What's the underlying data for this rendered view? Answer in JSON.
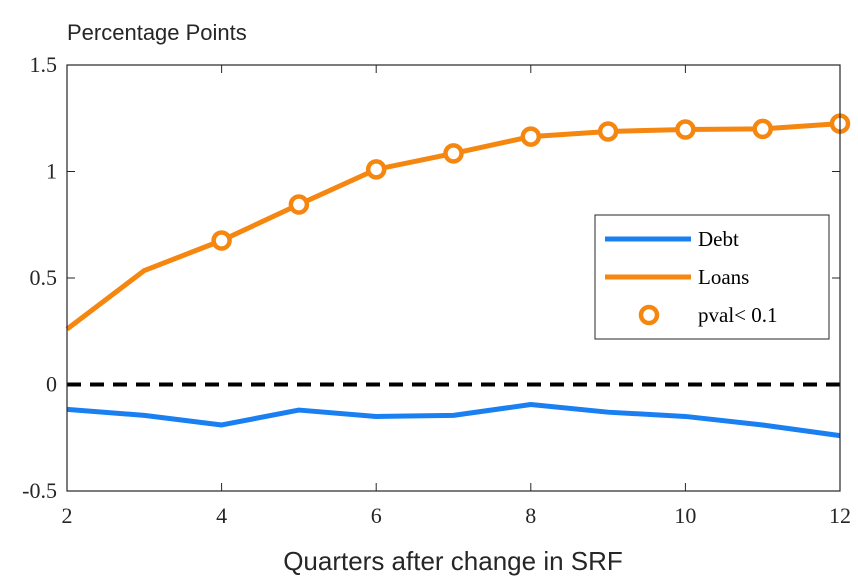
{
  "chart_data": {
    "type": "line",
    "title": "Percentage Points",
    "x_label": "Quarters after change in SRF",
    "x": [
      2,
      3,
      4,
      5,
      6,
      7,
      8,
      9,
      10,
      11,
      12
    ],
    "series": [
      {
        "name": "Debt",
        "color": "#1a80f2",
        "values": [
          -0.117,
          -0.145,
          -0.19,
          -0.12,
          -0.15,
          -0.145,
          -0.094,
          -0.13,
          -0.15,
          -0.19,
          -0.24
        ]
      },
      {
        "name": "Loans",
        "color": "#f5860f",
        "values": [
          0.26,
          0.535,
          0.676,
          0.845,
          1.01,
          1.085,
          1.164,
          1.188,
          1.197,
          1.2,
          1.225
        ]
      },
      {
        "name": "pval< 0.1",
        "type": "scatter",
        "color": "#f5860f",
        "values": [
          null,
          null,
          0.676,
          0.845,
          1.01,
          1.085,
          1.164,
          1.188,
          1.197,
          1.2,
          1.225
        ]
      }
    ],
    "reference_line": {
      "value": 0,
      "color": "#000000",
      "style": "dashed"
    },
    "xlim": [
      2,
      12
    ],
    "xticks": [
      2,
      4,
      6,
      8,
      10,
      12
    ],
    "ylim": [
      -0.5,
      1.5
    ],
    "yticks": [
      -0.5,
      0,
      0.5,
      1,
      1.5
    ],
    "legend": "right"
  }
}
